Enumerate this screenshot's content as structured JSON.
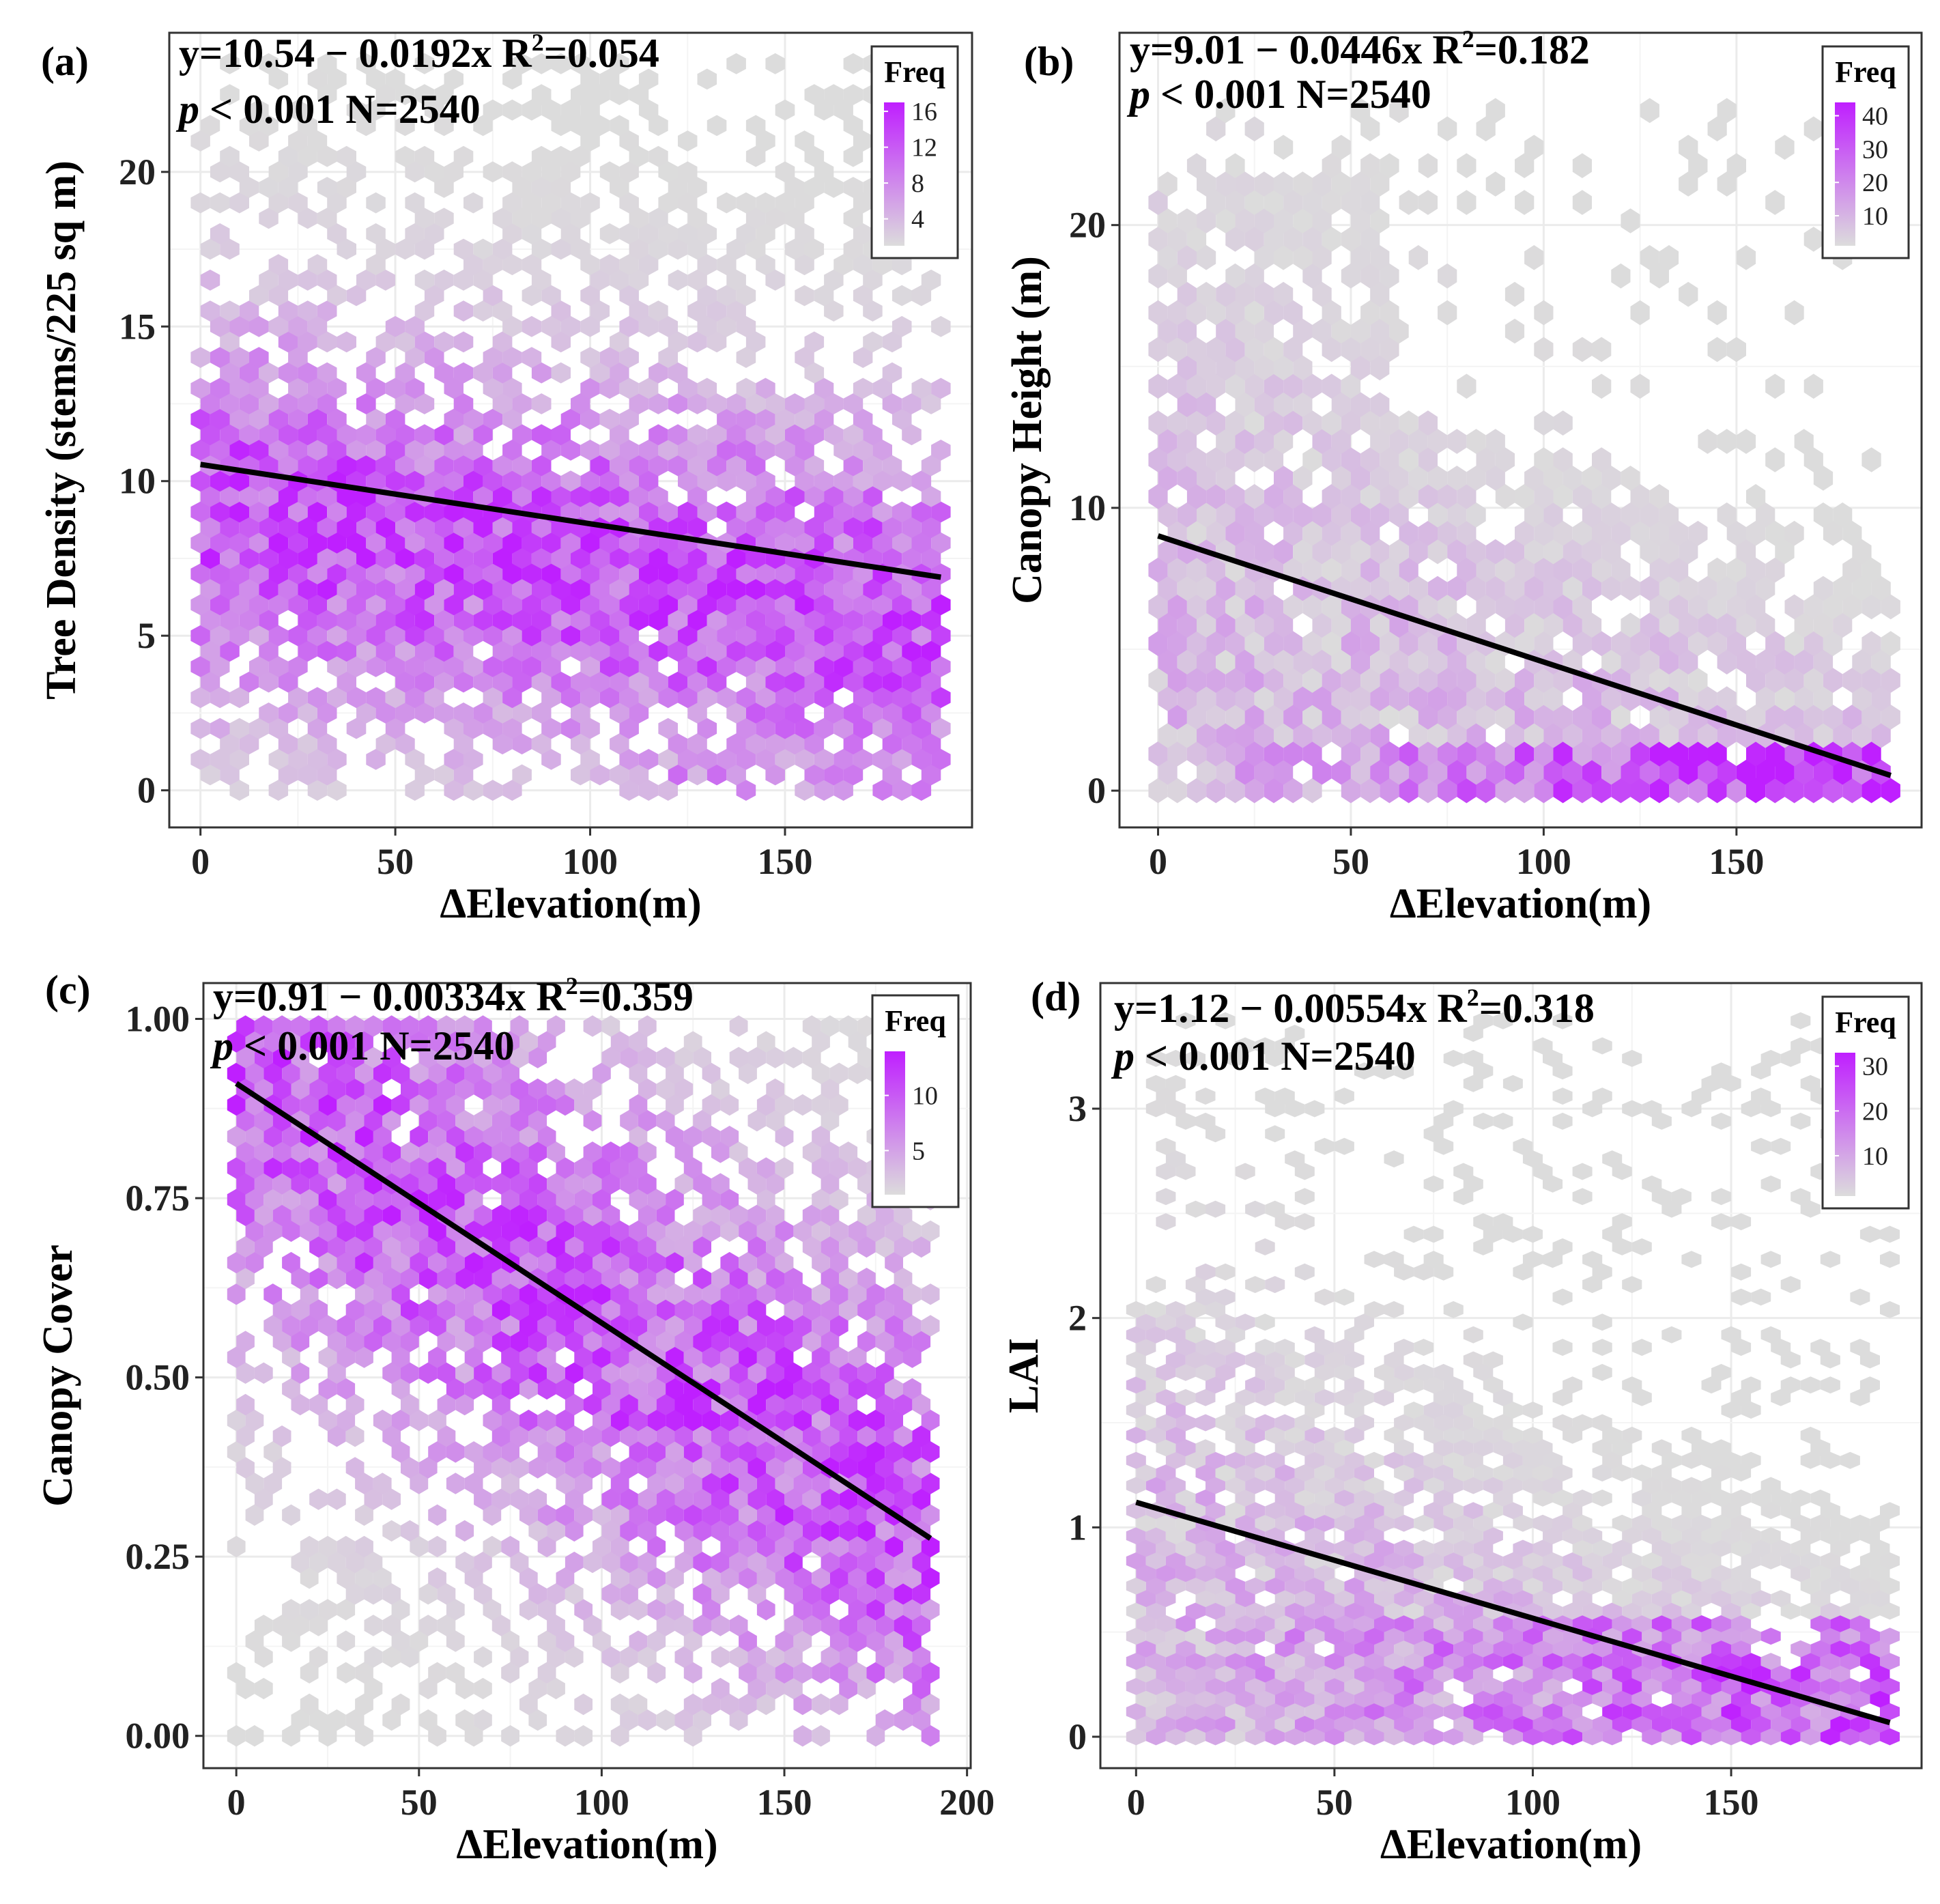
{
  "figure": {
    "axis_title_x": "ΔElevation(m)",
    "legend_title": "Freq",
    "colors": {
      "low": "#dcdcdc",
      "high": "#bf1fff",
      "line": "#000000",
      "grid": "#ebebeb",
      "frame": "#333333"
    }
  },
  "chart_data": [
    {
      "id": "a",
      "type": "heatmap",
      "subtype": "hexbin",
      "panel_label": "(a)",
      "eq": "y=10.54 − 0.0192x",
      "r2_label": "R",
      "r2_exp": "2",
      "r2_value": "=0.054",
      "p_italic": "p",
      "p_rest": " < 0.001",
      "n": "N=2540",
      "xlabel": "ΔElevation(m)",
      "ylabel": "Tree Density (stems/225 sq m)",
      "xlim": [
        -8,
        198
      ],
      "ylim": [
        -1.2,
        24.5
      ],
      "xticks": [
        0,
        50,
        100,
        150
      ],
      "yticks": [
        0,
        5,
        10,
        15,
        20
      ],
      "xtick_labels": [
        "0",
        "50",
        "100",
        "150"
      ],
      "ytick_labels": [
        "0",
        "5",
        "10",
        "15",
        "20"
      ],
      "fit": {
        "intercept": 10.54,
        "slope": -0.0192,
        "x0": 0,
        "x1": 190
      },
      "legend": {
        "title": "Freq",
        "min": 1,
        "max": 17,
        "ticks": [
          4,
          8,
          12,
          16
        ],
        "tick_labels": [
          "4",
          "8",
          "12",
          "16"
        ]
      },
      "hex": {
        "dx": 5,
        "dy": 0.5,
        "x0": 0,
        "x1": 190,
        "y0": 0,
        "y1": 23.5
      }
    },
    {
      "id": "b",
      "type": "heatmap",
      "subtype": "hexbin",
      "panel_label": "(b)",
      "eq": "y=9.01 − 0.0446x",
      "r2_label": "R",
      "r2_exp": "2",
      "r2_value": "=0.182",
      "p_italic": "p",
      "p_rest": " < 0.001",
      "n": "N=2540",
      "xlabel": "ΔElevation(m)",
      "ylabel": "Canopy Height (m)",
      "xlim": [
        -10,
        198
      ],
      "ylim": [
        -1.3,
        26.8
      ],
      "xticks": [
        0,
        50,
        100,
        150
      ],
      "yticks": [
        0,
        10,
        20
      ],
      "xtick_labels": [
        "0",
        "50",
        "100",
        "150"
      ],
      "ytick_labels": [
        "0",
        "10",
        "20"
      ],
      "fit": {
        "intercept": 9.01,
        "slope": -0.0446,
        "x0": 0,
        "x1": 190
      },
      "legend": {
        "title": "Freq",
        "min": 1,
        "max": 44,
        "ticks": [
          10,
          20,
          30,
          40
        ],
        "tick_labels": [
          "10",
          "20",
          "30",
          "40"
        ]
      },
      "hex": {
        "dx": 5,
        "dy": 0.65,
        "x0": 0,
        "x1": 190,
        "y0": 0,
        "y1": 24.5
      }
    },
    {
      "id": "c",
      "type": "heatmap",
      "subtype": "hexbin",
      "panel_label": "(c)",
      "eq": "y=0.91 − 0.00334x",
      "r2_label": "R",
      "r2_exp": "2",
      "r2_value": "=0.359",
      "p_italic": "p",
      "p_rest": " < 0.001",
      "n": "N=2540",
      "xlabel": "ΔElevation(m)",
      "ylabel": "Canopy Cover",
      "xlim": [
        -9,
        201
      ],
      "ylim": [
        -0.045,
        1.05
      ],
      "xticks": [
        0,
        50,
        100,
        150,
        200
      ],
      "yticks": [
        0,
        0.25,
        0.5,
        0.75,
        1.0
      ],
      "xtick_labels": [
        "0",
        "50",
        "100",
        "150",
        "200"
      ],
      "ytick_labels": [
        "0.00",
        "0.25",
        "0.50",
        "0.75",
        "1.00"
      ],
      "fit": {
        "intercept": 0.91,
        "slope": -0.00334,
        "x0": 0,
        "x1": 190
      },
      "legend": {
        "title": "Freq",
        "min": 1,
        "max": 14,
        "ticks": [
          5,
          10
        ],
        "tick_labels": [
          "5",
          "10"
        ]
      },
      "hex": {
        "dx": 5,
        "dy": 0.022,
        "x0": 0,
        "x1": 190,
        "y0": 0,
        "y1": 1.0
      }
    },
    {
      "id": "d",
      "type": "heatmap",
      "subtype": "hexbin",
      "panel_label": "(d)",
      "eq": "y=1.12 − 0.00554x",
      "r2_label": "R",
      "r2_exp": "2",
      "r2_value": "=0.318",
      "p_italic": "p",
      "p_rest": " < 0.001",
      "n": "N=2540",
      "xlabel": "ΔElevation(m)",
      "ylabel": "LAI",
      "xlim": [
        -9,
        198
      ],
      "ylim": [
        -0.15,
        3.6
      ],
      "xticks": [
        0,
        50,
        100,
        150
      ],
      "yticks": [
        0,
        1,
        2,
        3
      ],
      "xtick_labels": [
        "0",
        "50",
        "100",
        "150"
      ],
      "ytick_labels": [
        "0",
        "1",
        "2",
        "3"
      ],
      "fit": {
        "intercept": 1.12,
        "slope": -0.00554,
        "x0": 0,
        "x1": 190
      },
      "legend": {
        "title": "Freq",
        "min": 1,
        "max": 33,
        "ticks": [
          10,
          20,
          30
        ],
        "tick_labels": [
          "10",
          "20",
          "30"
        ]
      },
      "hex": {
        "dx": 5,
        "dy": 0.06,
        "x0": 0,
        "x1": 190,
        "y0": 0,
        "y1": 3.45
      }
    }
  ]
}
